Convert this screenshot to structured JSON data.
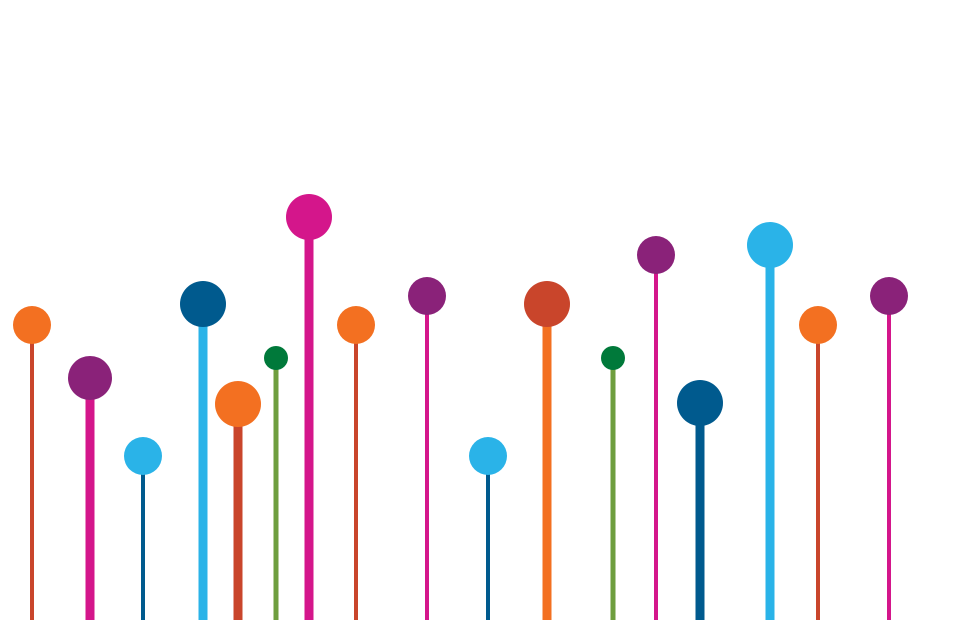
{
  "artwork": {
    "description_name": "lollipop-pins-illustration",
    "palette": {
      "orange": "#F37021",
      "red_orange": "#C9452B",
      "purple": "#8A2279",
      "magenta": "#D4168B",
      "cyan": "#2AB3E8",
      "navy": "#005A8E",
      "green_dot": "#00793A",
      "green_stem": "#6E9E3E"
    },
    "pins": [
      {
        "name": "pin-1",
        "stem_color": "#C9452B",
        "head_color": "#F37021"
      },
      {
        "name": "pin-2",
        "stem_color": "#D4168B",
        "head_color": "#8A2279"
      },
      {
        "name": "pin-3",
        "stem_color": "#005A8E",
        "head_color": "#2AB3E8"
      },
      {
        "name": "pin-4",
        "stem_color": "#2AB3E8",
        "head_color": "#005A8E"
      },
      {
        "name": "pin-5",
        "stem_color": "#C9452B",
        "head_color": "#F37021"
      },
      {
        "name": "pin-6",
        "stem_color": "#6E9E3E",
        "head_color": "#00793A"
      },
      {
        "name": "pin-7",
        "stem_color": "#D4168B",
        "head_color": "#D4168B"
      },
      {
        "name": "pin-8",
        "stem_color": "#C9452B",
        "head_color": "#F37021"
      },
      {
        "name": "pin-9",
        "stem_color": "#D4168B",
        "head_color": "#8A2279"
      },
      {
        "name": "pin-10",
        "stem_color": "#005A8E",
        "head_color": "#2AB3E8"
      },
      {
        "name": "pin-11",
        "stem_color": "#F37021",
        "head_color": "#C9452B"
      },
      {
        "name": "pin-12",
        "stem_color": "#6E9E3E",
        "head_color": "#00793A"
      },
      {
        "name": "pin-13",
        "stem_color": "#D4168B",
        "head_color": "#8A2279"
      },
      {
        "name": "pin-14",
        "stem_color": "#005A8E",
        "head_color": "#005A8E"
      },
      {
        "name": "pin-15",
        "stem_color": "#2AB3E8",
        "head_color": "#2AB3E8"
      },
      {
        "name": "pin-16",
        "stem_color": "#C9452B",
        "head_color": "#F37021"
      },
      {
        "name": "pin-17",
        "stem_color": "#D4168B",
        "head_color": "#8A2279"
      }
    ]
  }
}
